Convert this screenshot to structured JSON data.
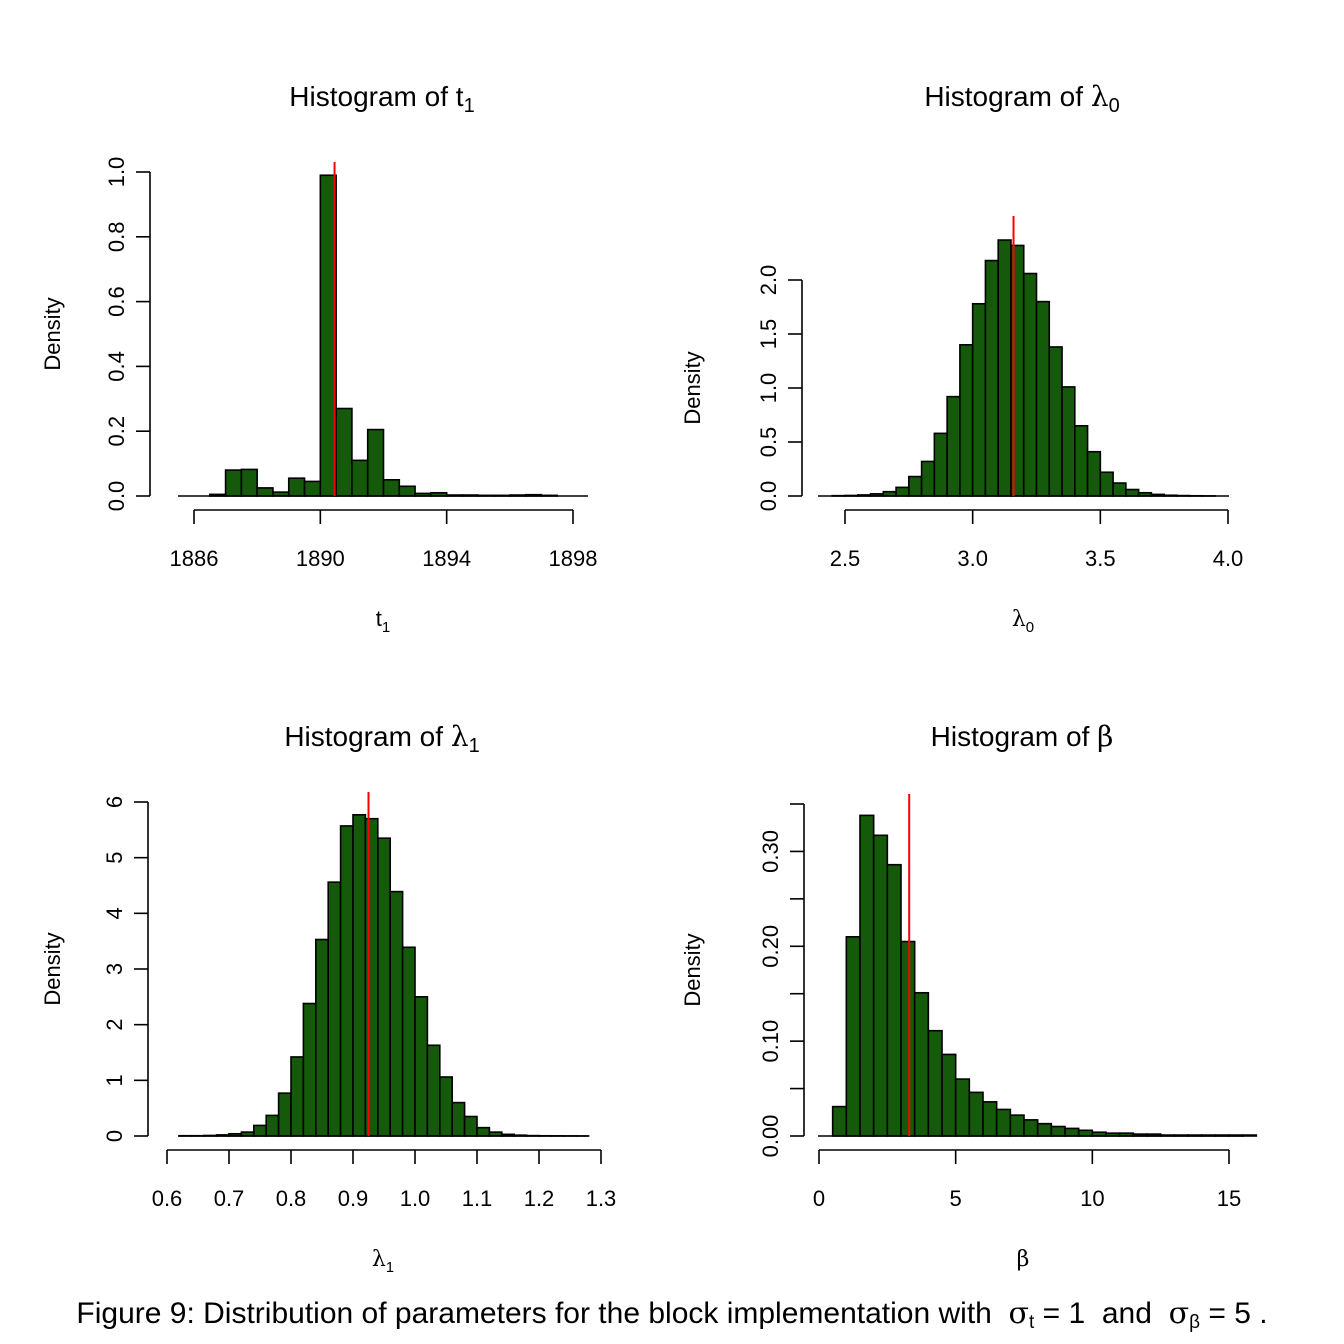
{
  "chart_data": [
    {
      "type": "bar",
      "title": "Histogram of",
      "title_symbol": "t",
      "title_subscript": "1",
      "xlabel": "t",
      "xlabel_subscript": "1",
      "ylabel": "Density",
      "xlim": [
        1885,
        1898.5
      ],
      "ylim": [
        0,
        1.0
      ],
      "xticks": [
        1886,
        1890,
        1894,
        1898
      ],
      "xtick_labels": [
        "1886",
        "1890",
        "1894",
        "1898"
      ],
      "yticks": [
        0,
        0.2,
        0.4,
        0.6,
        0.8,
        1.0
      ],
      "ytick_labels": [
        "0.0",
        "0.2",
        "0.4",
        "0.6",
        "0.8",
        "1.0"
      ],
      "bins_start": 1885.5,
      "bin_width": 0.5,
      "values": [
        0.0,
        0.0,
        0.005,
        0.08,
        0.082,
        0.025,
        0.012,
        0.055,
        0.045,
        0.99,
        0.27,
        0.11,
        0.205,
        0.05,
        0.03,
        0.008,
        0.01,
        0.003,
        0.003,
        0.002,
        0.002,
        0.003,
        0.004,
        0.002,
        0.0,
        0.0
      ],
      "vline": 1890.45,
      "bar_color": "#145a0a",
      "vline_color": "#ff0000"
    },
    {
      "type": "bar",
      "title": "Histogram of",
      "title_symbol": "λ",
      "title_subscript": "0",
      "xlabel": "λ",
      "xlabel_subscript": "0",
      "ylabel": "Density",
      "xlim": [
        2.4,
        4.0
      ],
      "ylim": [
        0,
        2.5
      ],
      "xticks": [
        2.5,
        3.0,
        3.5,
        4.0
      ],
      "xtick_labels": [
        "2.5",
        "3.0",
        "3.5",
        "4.0"
      ],
      "yticks": [
        0,
        0.5,
        1.0,
        1.5,
        2.0
      ],
      "ytick_labels": [
        "0.0",
        "0.5",
        "1.0",
        "1.5",
        "2.0"
      ],
      "bins_start": 2.4,
      "bin_width": 0.05,
      "values": [
        0.0,
        0.003,
        0.005,
        0.01,
        0.02,
        0.04,
        0.08,
        0.18,
        0.32,
        0.58,
        0.92,
        1.4,
        1.78,
        2.18,
        2.37,
        2.32,
        2.06,
        1.8,
        1.38,
        1.01,
        0.65,
        0.41,
        0.22,
        0.12,
        0.06,
        0.03,
        0.015,
        0.007,
        0.004,
        0.002,
        0.001,
        0.0
      ],
      "vline": 3.16,
      "bar_color": "#145a0a",
      "vline_color": "#ff0000"
    },
    {
      "type": "bar",
      "title": "Histogram of",
      "title_symbol": "λ",
      "title_subscript": "1",
      "xlabel": "λ",
      "xlabel_subscript": "1",
      "ylabel": "Density",
      "xlim": [
        0.6,
        1.3
      ],
      "ylim": [
        0,
        6
      ],
      "xticks": [
        0.6,
        0.7,
        0.8,
        0.9,
        1.0,
        1.1,
        1.2,
        1.3
      ],
      "xtick_labels": [
        "0.6",
        "0.7",
        "0.8",
        "0.9",
        "1.0",
        "1.1",
        "1.2",
        "1.3"
      ],
      "yticks": [
        0,
        1,
        2,
        3,
        4,
        5,
        6
      ],
      "ytick_labels": [
        "0",
        "1",
        "2",
        "3",
        "4",
        "5",
        "6"
      ],
      "bins_start": 0.62,
      "bin_width": 0.02,
      "values": [
        0.005,
        0.005,
        0.01,
        0.02,
        0.04,
        0.07,
        0.19,
        0.37,
        0.77,
        1.42,
        2.38,
        3.53,
        4.56,
        5.57,
        5.77,
        5.7,
        5.35,
        4.39,
        3.39,
        2.5,
        1.63,
        1.06,
        0.6,
        0.35,
        0.15,
        0.07,
        0.03,
        0.015,
        0.007,
        0.004,
        0.003,
        0.002,
        0.001
      ],
      "vline": 0.925,
      "bar_color": "#145a0a",
      "vline_color": "#ff0000"
    },
    {
      "type": "bar",
      "title": "Histogram of",
      "title_symbol": "β",
      "title_subscript": "",
      "xlabel": "β",
      "xlabel_subscript": "",
      "ylabel": "Density",
      "xlim": [
        0,
        15.5
      ],
      "ylim": [
        0,
        0.35
      ],
      "xticks": [
        0,
        5,
        10,
        15
      ],
      "xtick_labels": [
        "0",
        "5",
        "10",
        "15"
      ],
      "yticks": [
        0,
        0.05,
        0.1,
        0.15,
        0.2,
        0.25,
        0.3,
        0.35
      ],
      "ytick_labels": [
        "0.00",
        "",
        "0.10",
        "",
        "0.20",
        "",
        "0.30",
        ""
      ],
      "bins_start": 0.5,
      "bin_width": 0.5,
      "values": [
        0.031,
        0.21,
        0.338,
        0.317,
        0.286,
        0.205,
        0.151,
        0.111,
        0.086,
        0.06,
        0.046,
        0.036,
        0.028,
        0.022,
        0.017,
        0.013,
        0.01,
        0.008,
        0.006,
        0.004,
        0.003,
        0.003,
        0.002,
        0.002,
        0.001,
        0.001,
        0.001,
        0.001,
        0.001,
        0.001,
        0.001
      ],
      "vline": 3.3,
      "bar_color": "#145a0a",
      "vline_color": "#ff0000"
    }
  ],
  "caption": {
    "prefix": "Figure 9: Distribution of parameters for the block implementation with",
    "sym1": "σ",
    "sub1": "t",
    "eq1": "= 1",
    "and": "and",
    "sym2": "σ",
    "sub2": "β",
    "eq2": "= 5 ."
  }
}
